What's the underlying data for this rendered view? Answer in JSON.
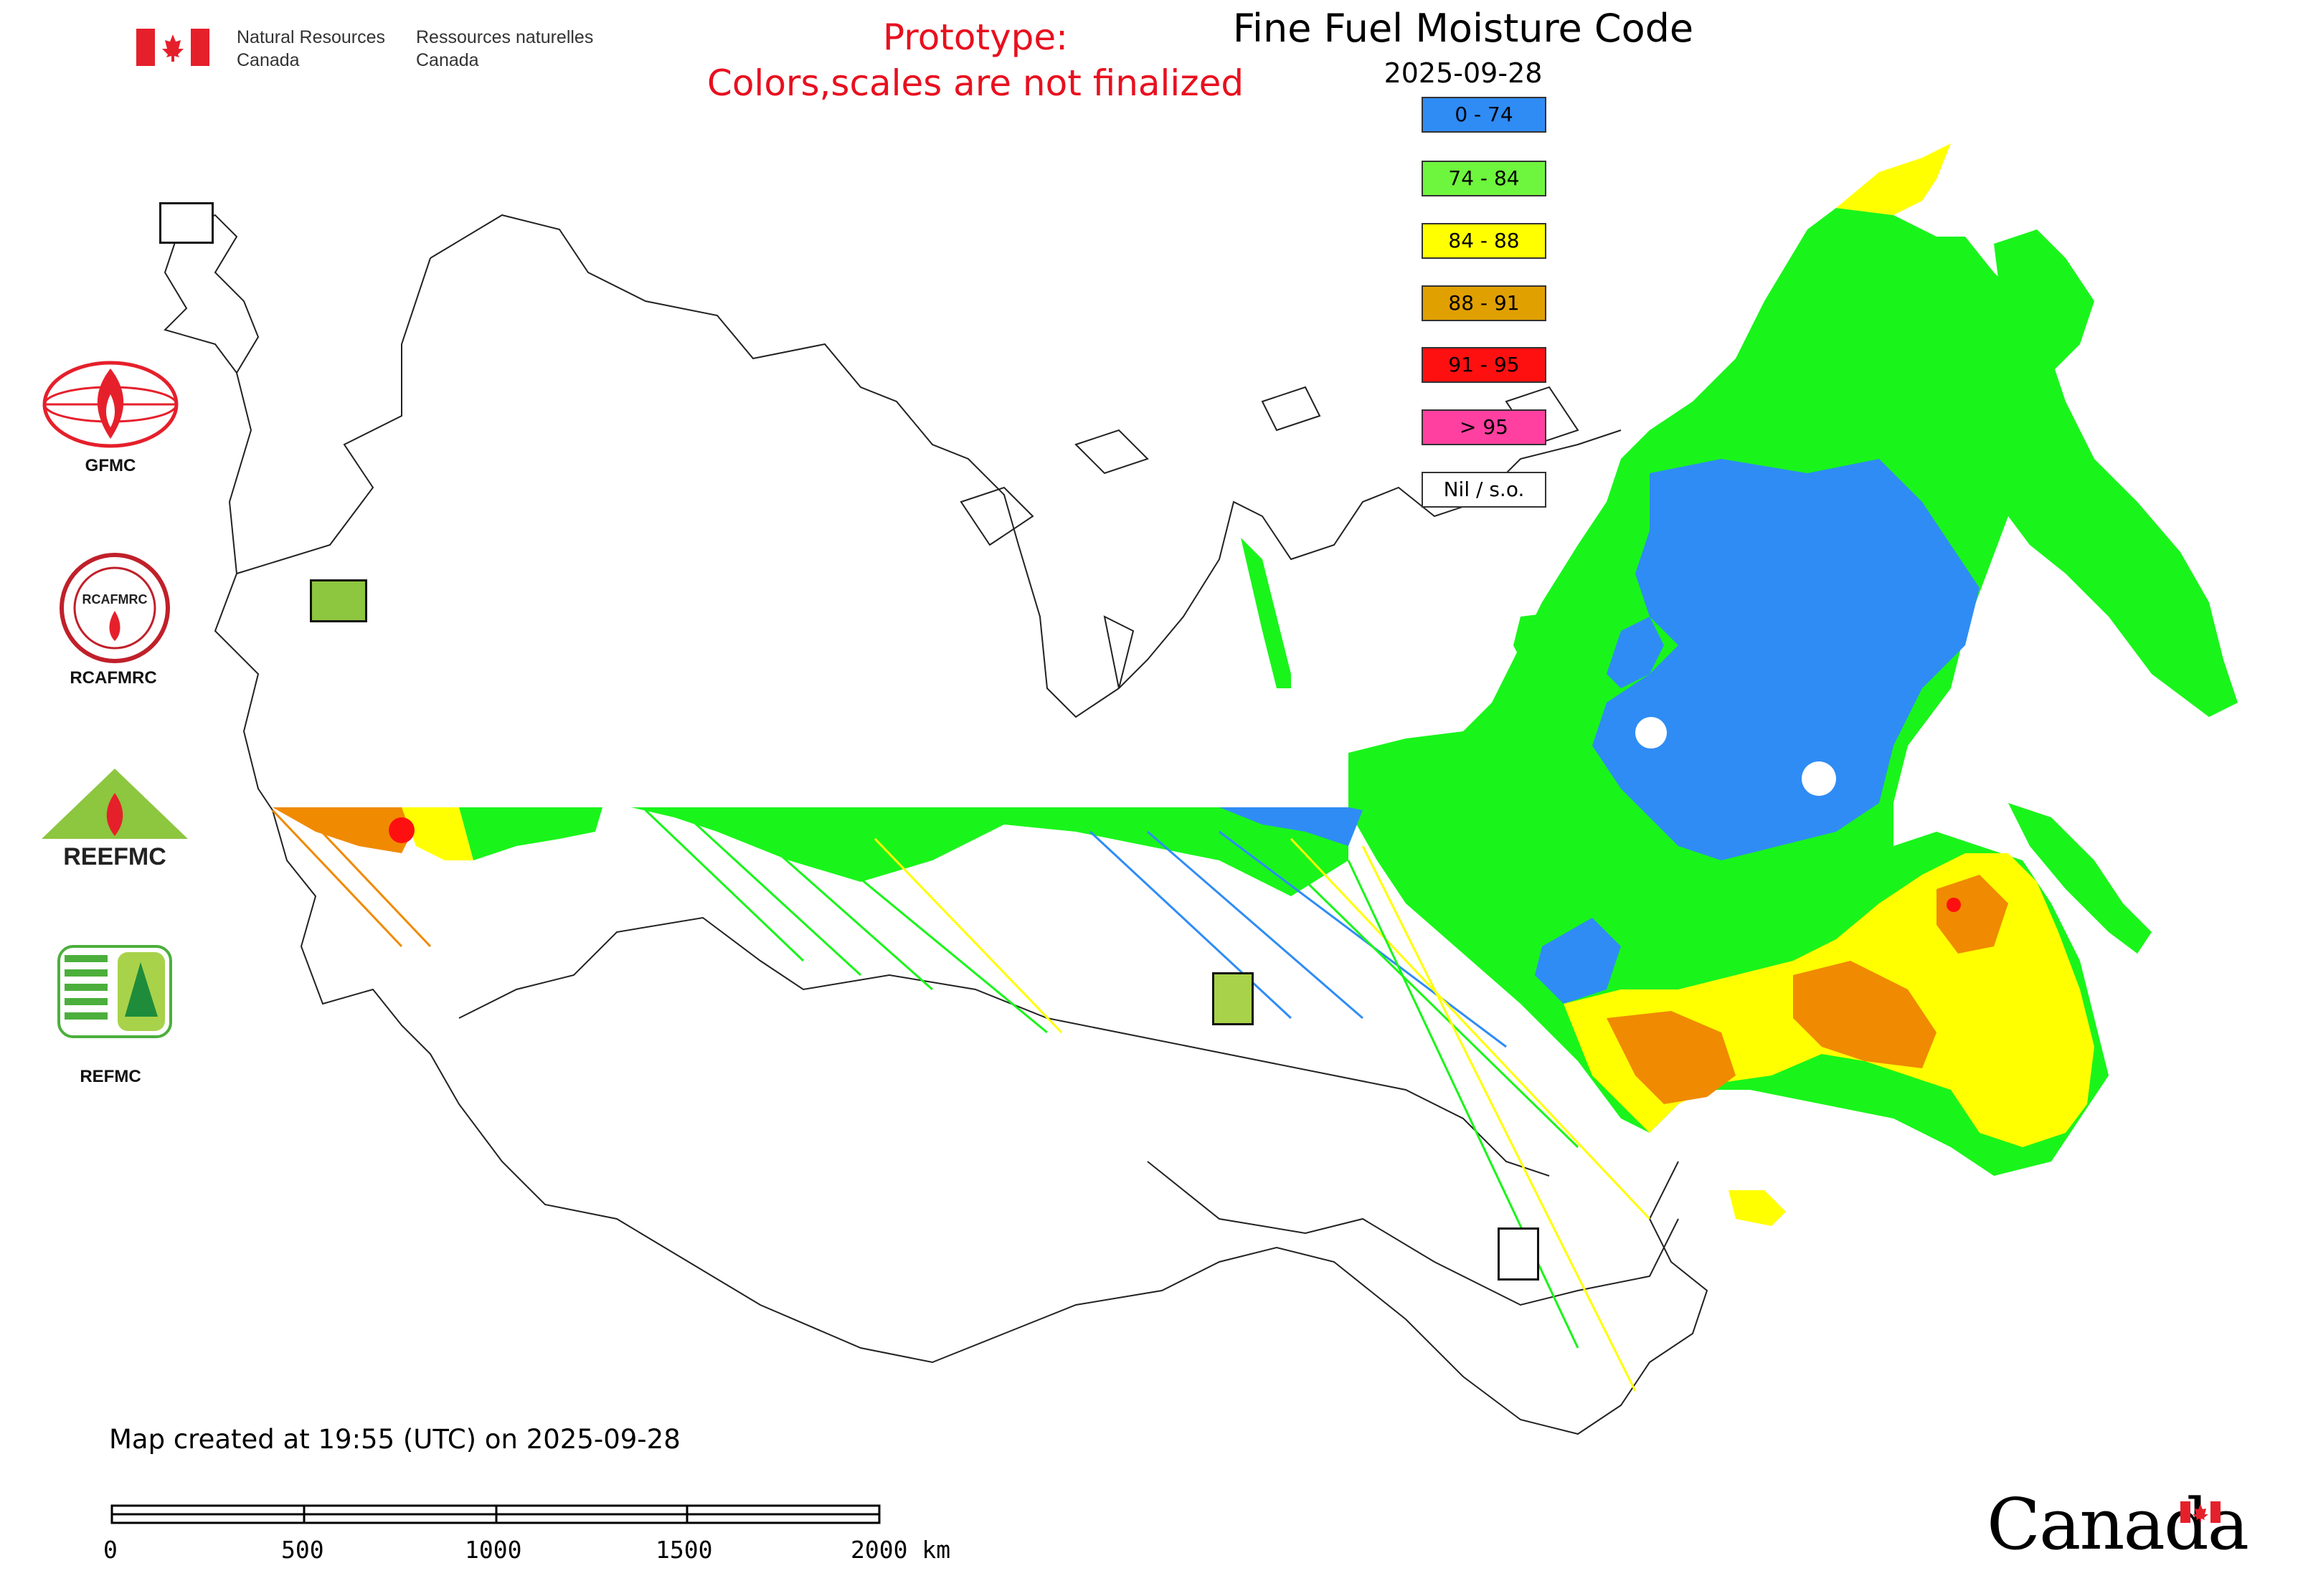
{
  "header": {
    "dept_en_line1": "Natural Resources",
    "dept_en_line2": "Canada",
    "dept_fr_line1": "Ressources naturelles",
    "dept_fr_line2": "Canada"
  },
  "prototype_notice": {
    "line1": "Prototype:",
    "line2": "Colors,scales are not finalized",
    "color": "#e8101f"
  },
  "title": "Fine Fuel Moisture Code",
  "date": "2025-09-28",
  "legend": [
    {
      "label": "0 - 74",
      "color": "#2f8cf5"
    },
    {
      "label": "74 - 84",
      "color": "#6ef53d"
    },
    {
      "label": "84 - 88",
      "color": "#ffff00"
    },
    {
      "label": "88 - 91",
      "color": "#e0a000"
    },
    {
      "label": "91 - 95",
      "color": "#ff1010"
    },
    {
      "label": "> 95",
      "color": "#ff40a0"
    },
    {
      "label": "Nil / s.o.",
      "color": "#ffffff"
    }
  ],
  "organizations": [
    {
      "name": "GFMC",
      "icon": "gfmc-logo-icon"
    },
    {
      "name": "RCAFMRC",
      "icon": "rcafmrc-logo-icon"
    },
    {
      "name": "REEFMC",
      "icon": "reefmc-logo-icon"
    },
    {
      "name": "REFMC",
      "icon": "refmc-logo-icon"
    }
  ],
  "created_text": "Map created at 19:55 (UTC) on 2025-09-28",
  "scale_bar": {
    "ticks": [
      "0",
      "500",
      "1000",
      "1500",
      "2000 km"
    ]
  },
  "wordmark": "Canada",
  "colors": {
    "blue": "#2f8cf5",
    "green": "#19f51a",
    "yellow": "#ffff00",
    "orange": "#f08a00",
    "red": "#ff1010"
  }
}
